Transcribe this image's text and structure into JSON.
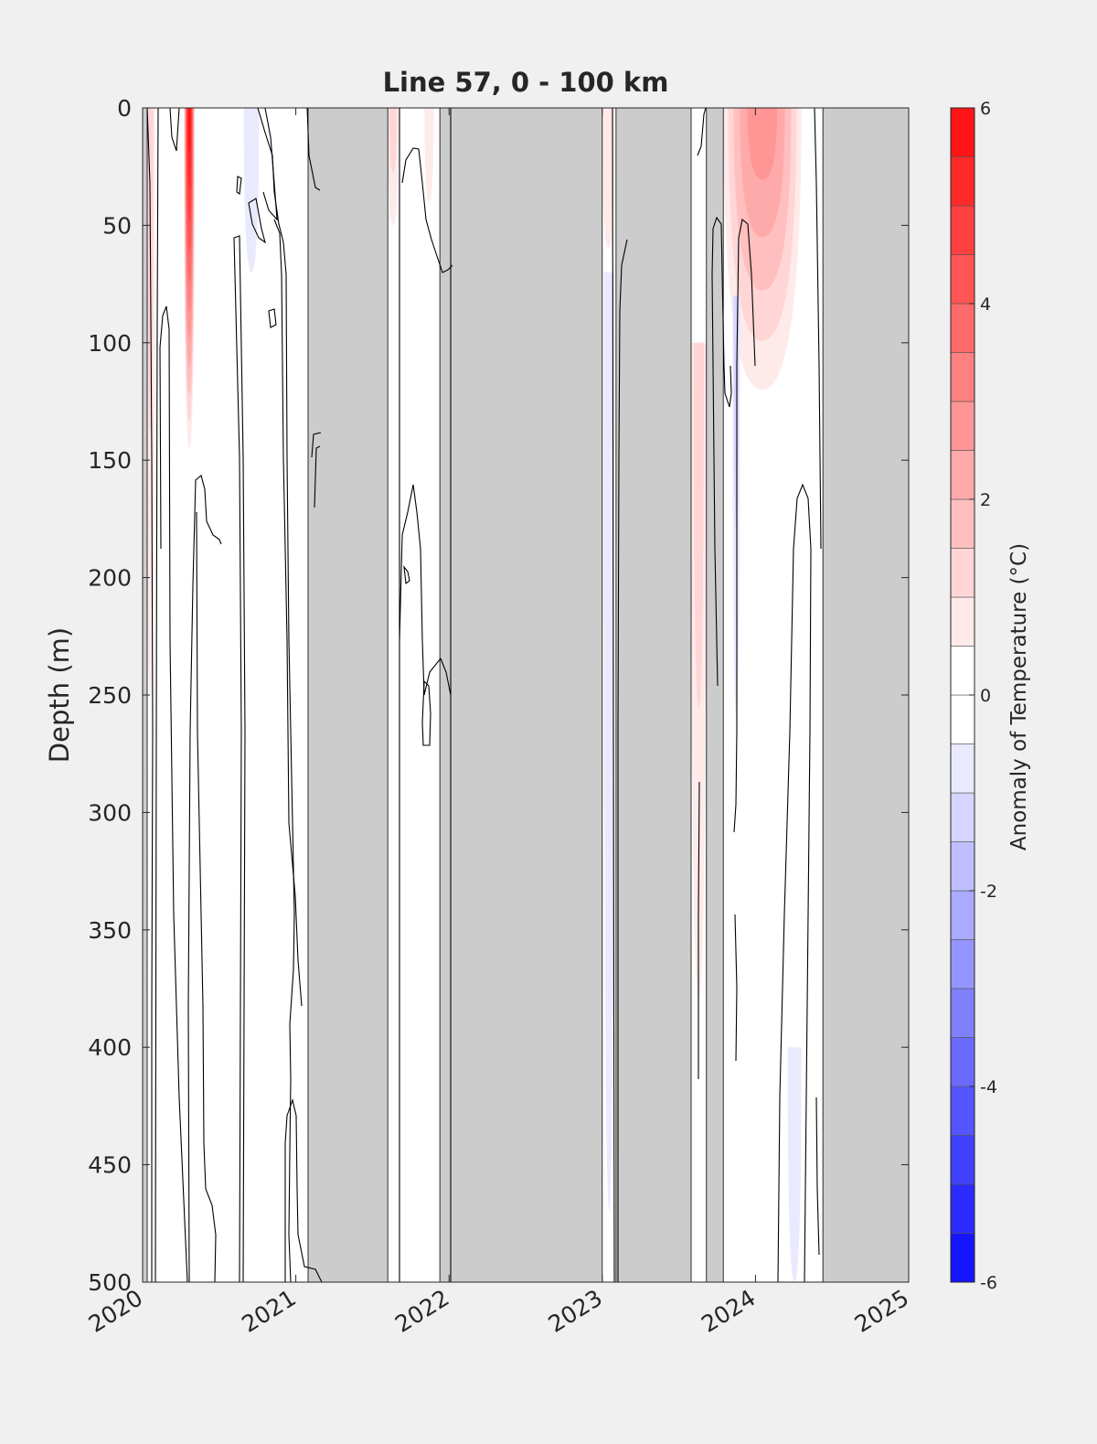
{
  "chart_data": {
    "type": "heatmap",
    "title": "Line 57, 0 - 100 km",
    "xlabel": "",
    "ylabel": "Depth (m)",
    "xlim": [
      2020,
      2025
    ],
    "ylim": [
      0,
      500
    ],
    "y_reversed": true,
    "x_ticks": [
      "2020",
      "2021",
      "2022",
      "2023",
      "2024",
      "2025"
    ],
    "y_ticks": [
      "0",
      "50",
      "100",
      "150",
      "200",
      "250",
      "300",
      "350",
      "400",
      "450",
      "500"
    ],
    "colorbar": {
      "label": "Anomaly of Temperature (°C)",
      "range": [
        -6,
        6
      ],
      "step": 0.5,
      "ticks": [
        "6",
        "4",
        "2",
        "0",
        "-2",
        "-4",
        "-6"
      ],
      "colormap": "blue-white-red",
      "neg_color": "#0000ff",
      "zero_color": "#ffffff",
      "pos_color": "#ff0000"
    },
    "no_data_color": "#cccccc",
    "no_data_periods": [
      [
        2020.0,
        2020.03
      ],
      [
        2021.08,
        2021.6
      ],
      [
        2021.94,
        2023.0
      ],
      [
        2023.09,
        2023.58
      ],
      [
        2023.68,
        2023.79
      ],
      [
        2024.44,
        2025.0
      ]
    ],
    "anomaly_features": [
      {
        "x": [
          2020.27,
          2020.34
        ],
        "depth": [
          0,
          145
        ],
        "peak": 5.5
      },
      {
        "x": [
          2020.02,
          2020.08
        ],
        "depth": [
          0,
          250
        ],
        "peak": 1.0
      },
      {
        "x": [
          2020.66,
          2020.76
        ],
        "depth": [
          0,
          70
        ],
        "peak": -0.6
      },
      {
        "x": [
          2021.6,
          2021.67
        ],
        "depth": [
          0,
          50
        ],
        "peak": 0.8
      },
      {
        "x": [
          2021.84,
          2021.9
        ],
        "depth": [
          0,
          40
        ],
        "peak": 0.5
      },
      {
        "x": [
          2023.0,
          2023.08
        ],
        "depth": [
          0,
          60
        ],
        "peak": 0.6
      },
      {
        "x": [
          2023.01,
          2023.08
        ],
        "depth": [
          70,
          470
        ],
        "peak": -0.6
      },
      {
        "x": [
          2023.79,
          2024.3
        ],
        "depth": [
          0,
          120
        ],
        "peak": 2.5
      },
      {
        "x": [
          2023.58,
          2023.68
        ],
        "depth": [
          100,
          380
        ],
        "peak": 0.8
      },
      {
        "x": [
          2023.85,
          2023.9
        ],
        "depth": [
          80,
          260
        ],
        "peak": -0.8
      },
      {
        "x": [
          2024.21,
          2024.3
        ],
        "depth": [
          400,
          500
        ],
        "peak": -0.6
      }
    ]
  }
}
